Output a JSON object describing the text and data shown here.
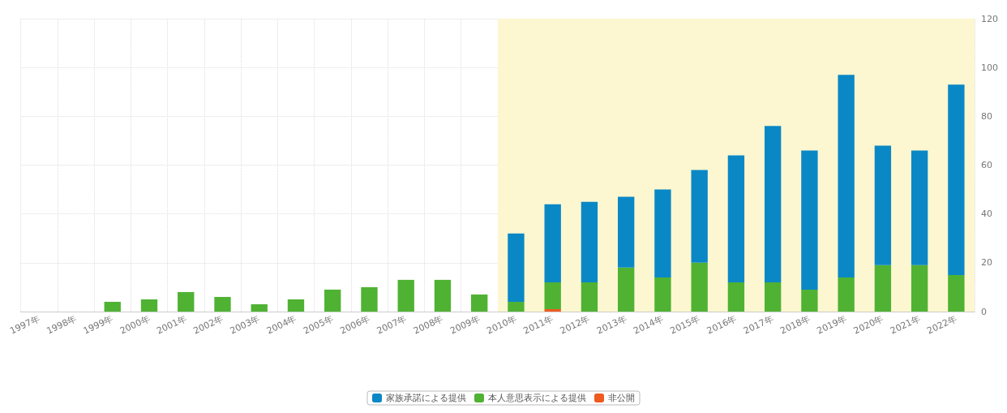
{
  "chart_data": {
    "type": "bar",
    "stacked": true,
    "categories": [
      "1997年",
      "1998年",
      "1999年",
      "2000年",
      "2001年",
      "2002年",
      "2003年",
      "2004年",
      "2005年",
      "2006年",
      "2007年",
      "2008年",
      "2009年",
      "2010年",
      "2011年",
      "2012年",
      "2013年",
      "2014年",
      "2015年",
      "2016年",
      "2017年",
      "2018年",
      "2019年",
      "2020年",
      "2021年",
      "2022年"
    ],
    "series": [
      {
        "name": "非公開",
        "color": "#ef5a1f",
        "values": [
          null,
          null,
          null,
          null,
          null,
          null,
          null,
          null,
          null,
          null,
          null,
          null,
          null,
          null,
          1,
          null,
          null,
          null,
          null,
          null,
          null,
          null,
          null,
          null,
          null,
          null
        ]
      },
      {
        "name": "本人意思表示による提供",
        "color": "#50b233",
        "values": [
          null,
          null,
          4,
          5,
          8,
          6,
          3,
          5,
          9,
          10,
          13,
          13,
          7,
          4,
          11,
          12,
          18,
          14,
          20,
          12,
          12,
          9,
          14,
          19,
          19,
          15
        ]
      },
      {
        "name": "家族承諾による提供",
        "color": "#0a88c6",
        "values": [
          null,
          null,
          null,
          null,
          null,
          null,
          null,
          null,
          null,
          null,
          null,
          null,
          null,
          28,
          32,
          33,
          29,
          36,
          38,
          52,
          64,
          57,
          83,
          49,
          47,
          78
        ]
      }
    ],
    "ylim": [
      0,
      120
    ],
    "yticks": [
      0,
      20,
      40,
      60,
      80,
      100,
      120
    ],
    "grid": true,
    "legend": "bottom",
    "bands": [
      {
        "axis": "x",
        "from": "2010年",
        "to": "2022年",
        "color": "#fcf7d0"
      }
    ]
  }
}
